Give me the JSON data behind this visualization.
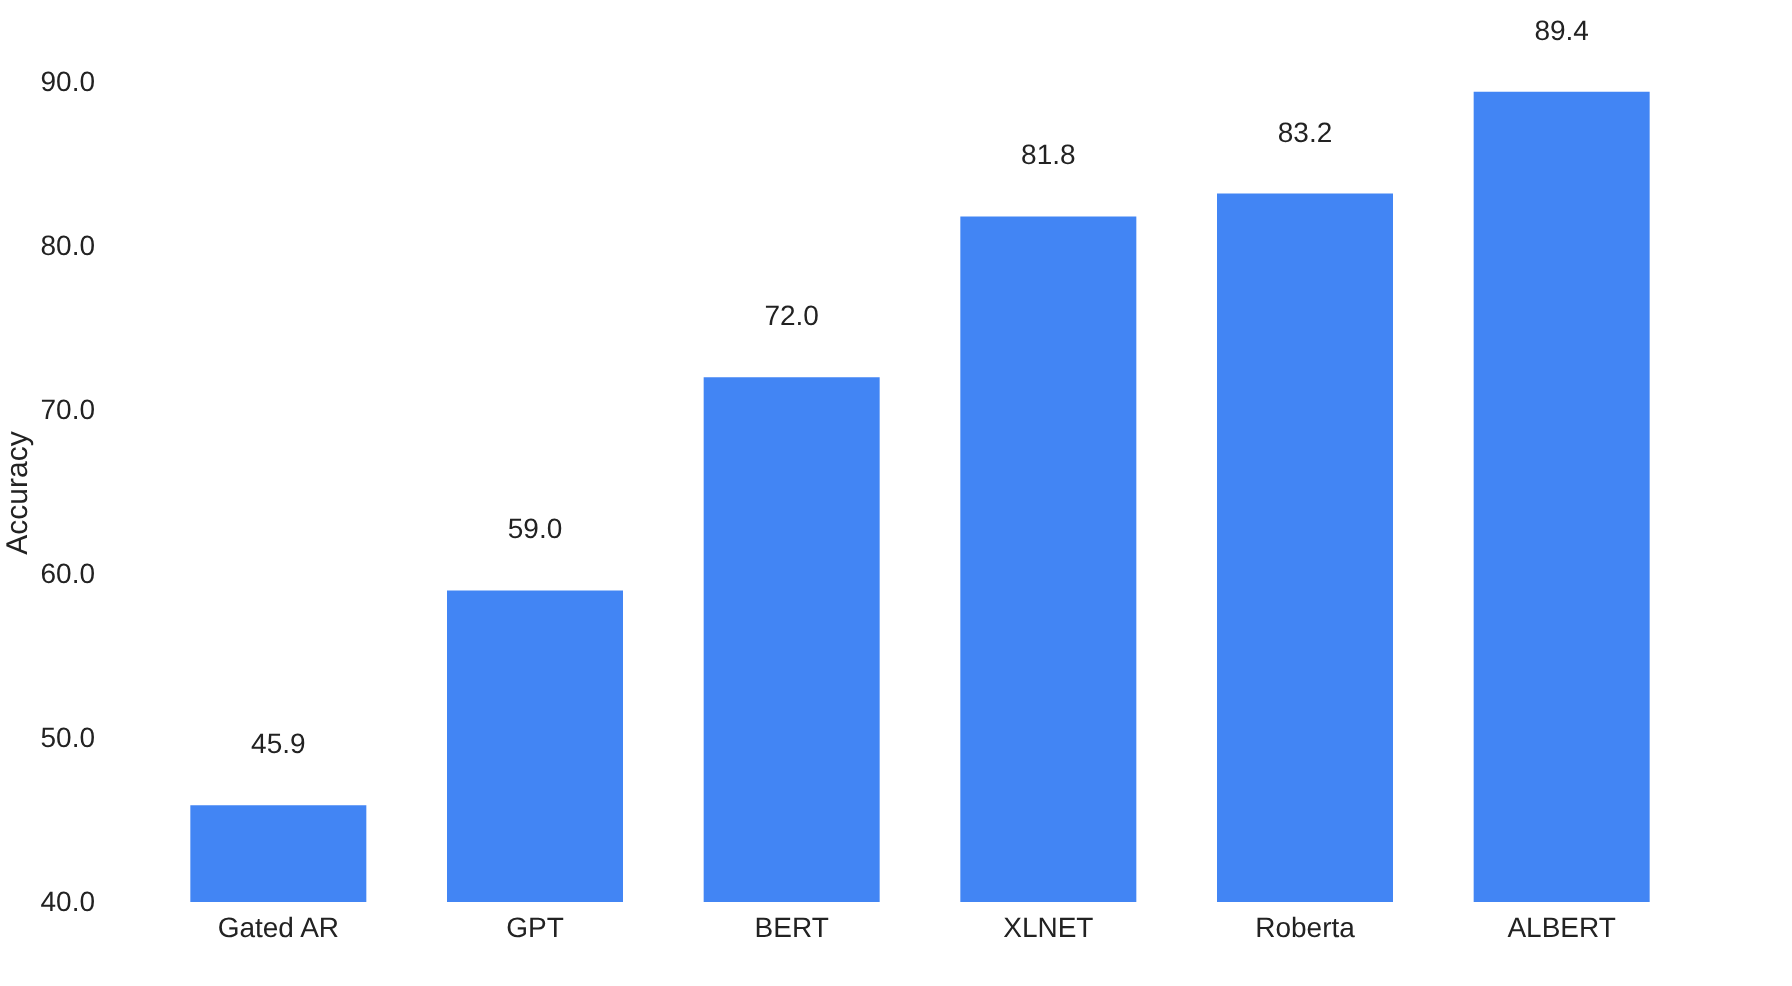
{
  "chart_data": {
    "type": "bar",
    "ylabel": "Accuracy",
    "categories": [
      "Gated AR",
      "GPT",
      "BERT",
      "XLNET",
      "Roberta",
      "ALBERT"
    ],
    "values": [
      45.9,
      59.0,
      72.0,
      81.8,
      83.2,
      89.4
    ],
    "value_labels": [
      "45.9",
      "59.0",
      "72.0",
      "81.8",
      "83.2",
      "89.4"
    ],
    "color": "#4285f4",
    "ylim": [
      40,
      90
    ],
    "yticks": [
      {
        "value": 40,
        "label": "40.0"
      },
      {
        "value": 50,
        "label": "50.0"
      },
      {
        "value": 60,
        "label": "60.0"
      },
      {
        "value": 70,
        "label": "70.0"
      },
      {
        "value": 80,
        "label": "80.0"
      },
      {
        "value": 90,
        "label": "90.0"
      }
    ],
    "grid": false
  }
}
